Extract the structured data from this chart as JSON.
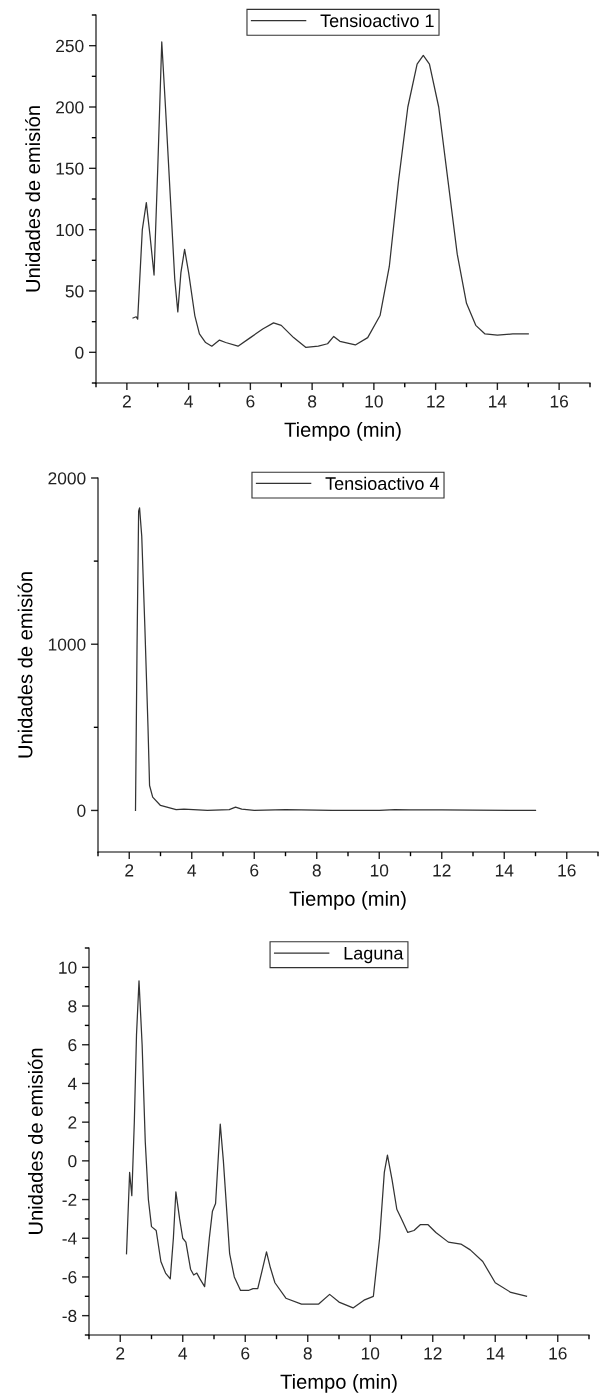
{
  "chart_data": [
    {
      "type": "line",
      "xlabel": "Tiempo (min)",
      "ylabel": "Unidades de emisión",
      "legend": "top",
      "grid": false,
      "xlim": [
        1,
        17
      ],
      "ylim": [
        -25,
        275
      ],
      "xticks": [
        {
          "value": 1,
          "label": null
        },
        2,
        {
          "value": 3,
          "label": null
        },
        4,
        {
          "value": 5,
          "label": null
        },
        6,
        {
          "value": 7,
          "label": null
        },
        8,
        {
          "value": 9,
          "label": null
        },
        10,
        {
          "value": 11,
          "label": null
        },
        12,
        {
          "value": 13,
          "label": null
        },
        14,
        {
          "value": 15,
          "label": null
        },
        16,
        {
          "value": 17,
          "label": null
        }
      ],
      "yticks": [
        {
          "value": -25,
          "label": null
        },
        0,
        {
          "value": 25,
          "label": null
        },
        50,
        {
          "value": 75,
          "label": null
        },
        100,
        {
          "value": 125,
          "label": null
        },
        150,
        {
          "value": 175,
          "label": null
        },
        200,
        {
          "value": 225,
          "label": null
        },
        250,
        {
          "value": 275,
          "label": null
        }
      ],
      "series": [
        {
          "name": "Tensioactivo 1",
          "color": "#333333",
          "x": [
            2.2,
            2.3,
            2.35,
            2.5,
            2.63,
            2.75,
            2.88,
            3.0,
            3.13,
            3.25,
            3.4,
            3.55,
            3.65,
            3.75,
            3.87,
            4.0,
            4.2,
            4.35,
            4.55,
            4.75,
            5.0,
            5.2,
            5.6,
            6.0,
            6.4,
            6.75,
            7.0,
            7.4,
            7.8,
            8.2,
            8.5,
            8.7,
            8.9,
            9.4,
            9.8,
            10.2,
            10.5,
            10.8,
            11.1,
            11.4,
            11.6,
            11.8,
            12.1,
            12.4,
            12.7,
            13.0,
            13.3,
            13.6,
            14.0,
            14.5,
            15.0
          ],
          "values": [
            28,
            29,
            27,
            100,
            122,
            95,
            63,
            150,
            253,
            200,
            130,
            60,
            33,
            65,
            84,
            65,
            30,
            15,
            8,
            5,
            10,
            8,
            5,
            12,
            19,
            24,
            22,
            12,
            4,
            5,
            7,
            13,
            9,
            6,
            12,
            30,
            70,
            140,
            200,
            235,
            242,
            235,
            200,
            140,
            80,
            40,
            22,
            15,
            14,
            15,
            15
          ]
        }
      ]
    },
    {
      "type": "line",
      "xlabel": "Tiempo (min)",
      "ylabel": "Unidades de emisión",
      "legend": "top",
      "grid": false,
      "xlim": [
        1,
        17
      ],
      "ylim": [
        -250,
        2000
      ],
      "xticks": [
        {
          "value": 1,
          "label": null
        },
        2,
        {
          "value": 3,
          "label": null
        },
        4,
        {
          "value": 5,
          "label": null
        },
        6,
        {
          "value": 7,
          "label": null
        },
        8,
        {
          "value": 9,
          "label": null
        },
        10,
        {
          "value": 11,
          "label": null
        },
        12,
        {
          "value": 13,
          "label": null
        },
        14,
        {
          "value": 15,
          "label": null
        },
        16,
        {
          "value": 17,
          "label": null
        }
      ],
      "yticks": [
        0,
        {
          "value": 500,
          "label": null
        },
        1000,
        {
          "value": 1500,
          "label": null
        },
        2000
      ],
      "series": [
        {
          "name": "Tensioactivo 4",
          "color": "#333333",
          "x": [
            2.2,
            2.25,
            2.3,
            2.33,
            2.4,
            2.5,
            2.6,
            2.65,
            2.75,
            3.0,
            3.5,
            3.75,
            4.5,
            5.2,
            5.4,
            5.6,
            6.0,
            7.0,
            7.5,
            8.5,
            10.0,
            10.5,
            11.0,
            12.0,
            13.0,
            15.0
          ],
          "values": [
            0,
            1000,
            1800,
            1820,
            1650,
            1100,
            500,
            150,
            80,
            30,
            5,
            8,
            0,
            5,
            20,
            8,
            0,
            5,
            3,
            0,
            0,
            5,
            3,
            3,
            2,
            0
          ]
        }
      ]
    },
    {
      "type": "line",
      "xlabel": "Tiempo (min)",
      "ylabel": "Unidades de emisión",
      "legend": "top",
      "grid": false,
      "xlim": [
        1,
        17
      ],
      "ylim": [
        -9,
        11
      ],
      "xticks": [
        {
          "value": 1,
          "label": null
        },
        2,
        {
          "value": 3,
          "label": null
        },
        4,
        {
          "value": 5,
          "label": null
        },
        6,
        {
          "value": 7,
          "label": null
        },
        8,
        {
          "value": 9,
          "label": null
        },
        10,
        {
          "value": 11,
          "label": null
        },
        12,
        {
          "value": 13,
          "label": null
        },
        14,
        {
          "value": 15,
          "label": null
        },
        16,
        {
          "value": 17,
          "label": null
        }
      ],
      "yticks": [
        {
          "value": -9,
          "label": null
        },
        -8,
        {
          "value": -7,
          "label": null
        },
        -6,
        {
          "value": -5,
          "label": null
        },
        -4,
        {
          "value": -3,
          "label": null
        },
        -2,
        {
          "value": -1,
          "label": null
        },
        0,
        {
          "value": 1,
          "label": null
        },
        2,
        {
          "value": 3,
          "label": null
        },
        4,
        {
          "value": 5,
          "label": null
        },
        6,
        {
          "value": 7,
          "label": null
        },
        8,
        {
          "value": 9,
          "label": null
        },
        10,
        {
          "value": 11,
          "label": null
        }
      ],
      "series": [
        {
          "name": "Laguna",
          "color": "#333333",
          "x": [
            2.2,
            2.3,
            2.37,
            2.45,
            2.52,
            2.6,
            2.7,
            2.8,
            2.9,
            3.0,
            3.15,
            3.3,
            3.45,
            3.6,
            3.7,
            3.78,
            3.9,
            4.0,
            4.1,
            4.25,
            4.35,
            4.45,
            4.55,
            4.7,
            4.85,
            4.95,
            5.05,
            5.2,
            5.3,
            5.5,
            5.65,
            5.85,
            6.1,
            6.25,
            6.4,
            6.55,
            6.68,
            6.8,
            6.95,
            7.3,
            7.8,
            8.1,
            8.35,
            8.7,
            9.0,
            9.45,
            9.8,
            10.1,
            10.3,
            10.45,
            10.55,
            10.7,
            10.85,
            11.0,
            11.2,
            11.4,
            11.6,
            11.85,
            12.1,
            12.5,
            12.9,
            13.2,
            13.6,
            14.0,
            14.5,
            15.0
          ],
          "values": [
            -4.8,
            -0.6,
            -1.8,
            2,
            6.5,
            9.3,
            6,
            1,
            -2,
            -3.4,
            -3.6,
            -5.2,
            -5.8,
            -6.1,
            -4,
            -1.6,
            -3,
            -4,
            -4.2,
            -5.6,
            -5.9,
            -5.8,
            -6.1,
            -6.5,
            -4,
            -2.6,
            -2.2,
            1.9,
            0,
            -4.8,
            -6,
            -6.7,
            -6.7,
            -6.6,
            -6.6,
            -5.6,
            -4.7,
            -5.5,
            -6.3,
            -7.1,
            -7.4,
            -7.4,
            -7.4,
            -6.9,
            -7.3,
            -7.6,
            -7.2,
            -7.0,
            -4,
            -0.6,
            0.3,
            -1.0,
            -2.5,
            -3.0,
            -3.7,
            -3.6,
            -3.3,
            -3.3,
            -3.7,
            -4.2,
            -4.3,
            -4.6,
            -5.2,
            -6.3,
            -6.8,
            -7.0
          ]
        }
      ]
    }
  ]
}
